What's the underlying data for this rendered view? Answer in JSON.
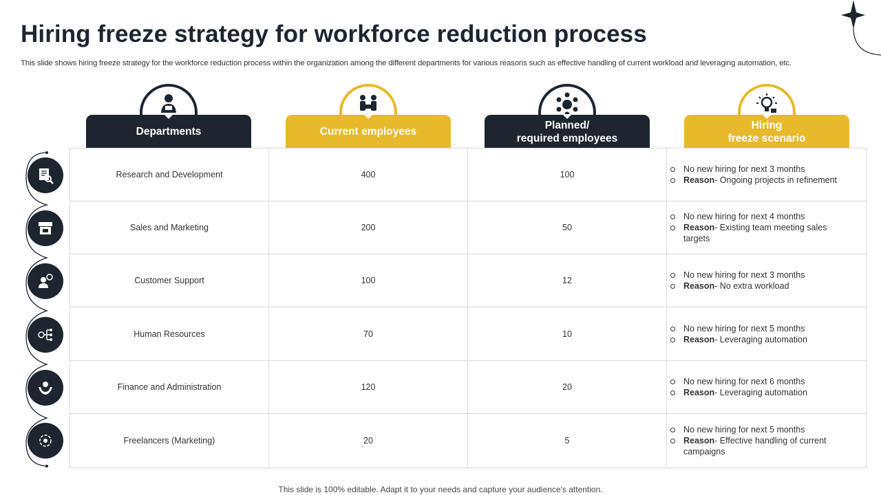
{
  "title": "Hiring freeze strategy for workforce reduction process",
  "subtitle": "This slide shows hiring freeze strategy for the workforce reduction process within the organization among the different departments for various reasons such as effective handling of current workload and leveraging automation, etc.",
  "headers": [
    {
      "label": "Departments",
      "icon": "worker-icon"
    },
    {
      "label": "Current employees",
      "icon": "meeting-icon"
    },
    {
      "label": "Planned/\nrequired employees",
      "icon": "team-icon"
    },
    {
      "label": "Hiring\nfreeze scenario",
      "icon": "idea-icon"
    }
  ],
  "rows": [
    {
      "department": "Research and Development",
      "current": "400",
      "planned": "100",
      "scenario": "No new hiring for next 3 months",
      "reason_label": "Reason",
      "reason": "- Ongoing projects in refinement",
      "icon": "research-icon"
    },
    {
      "department": "Sales and Marketing",
      "current": "200",
      "planned": "50",
      "scenario": "No new hiring for next 4 months",
      "reason_label": "Reason",
      "reason": "- Existing team meeting sales targets",
      "icon": "store-icon"
    },
    {
      "department": "Customer Support",
      "current": "100",
      "planned": "12",
      "scenario": "No new hiring for next 3 months",
      "reason_label": "Reason",
      "reason": "- No extra workload",
      "icon": "support-icon"
    },
    {
      "department": "Human Resources",
      "current": "70",
      "planned": "10",
      "scenario": "No new hiring for next 5 months",
      "reason_label": "Reason",
      "reason": "- Leveraging  automation",
      "icon": "org-chart-icon"
    },
    {
      "department": "Finance and Administration",
      "current": "120",
      "planned": "20",
      "scenario": "No new hiring for next 6 months",
      "reason_label": "Reason",
      "reason": "- Leveraging  automation",
      "icon": "hand-money-icon"
    },
    {
      "department": "Freelancers  (Marketing)",
      "current": "20",
      "planned": "5",
      "scenario": "No new hiring for next 5 months",
      "reason_label": "Reason",
      "reason": "- Effective  handling of current campaigns",
      "icon": "cycle-icon"
    }
  ],
  "footer": "This slide is 100% editable. Adapt it to your needs and capture your audience's attention.",
  "colors": {
    "dark": "#1d2530",
    "gold": "#e8b92b",
    "border": "#d9d9d9"
  }
}
